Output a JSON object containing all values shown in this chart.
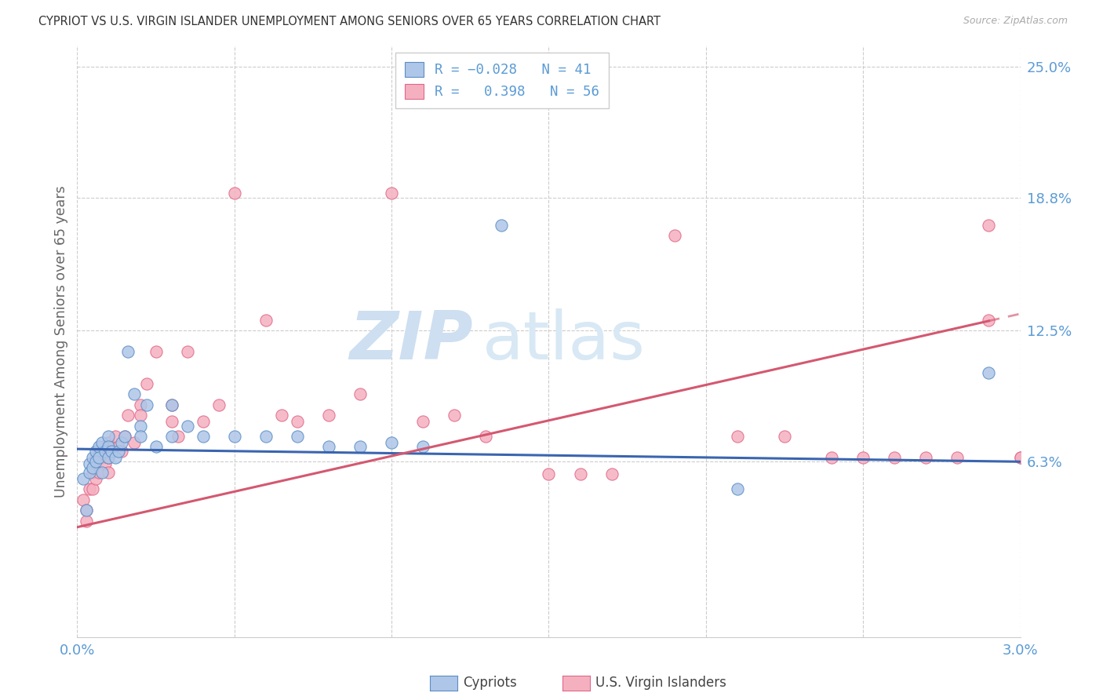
{
  "title": "CYPRIOT VS U.S. VIRGIN ISLANDER UNEMPLOYMENT AMONG SENIORS OVER 65 YEARS CORRELATION CHART",
  "source": "Source: ZipAtlas.com",
  "ylabel": "Unemployment Among Seniors over 65 years",
  "x_min": 0.0,
  "x_max": 0.03,
  "y_min": -0.02,
  "y_max": 0.26,
  "x_ticks": [
    0.0,
    0.005,
    0.01,
    0.015,
    0.02,
    0.025,
    0.03
  ],
  "x_tick_labels": [
    "0.0%",
    "",
    "",
    "",
    "",
    "",
    "3.0%"
  ],
  "y_tick_vals_right": [
    0.063,
    0.125,
    0.188,
    0.25
  ],
  "y_tick_labels_right": [
    "6.3%",
    "12.5%",
    "18.8%",
    "25.0%"
  ],
  "color_cypriot_fill": "#aec6e8",
  "color_cypriot_edge": "#5b8ec4",
  "color_virgin_fill": "#f5b0c0",
  "color_virgin_edge": "#e06888",
  "color_cypriot_line": "#3a65b0",
  "color_virgin_line": "#d45870",
  "color_title": "#333333",
  "color_ylabel": "#666666",
  "color_tick_right": "#5b9bd5",
  "color_tick_bottom": "#5b9bd5",
  "color_legend_text": "#5b9bd5",
  "watermark_color": "#cddff0",
  "background": "#ffffff",
  "cypriot_x": [
    0.0002,
    0.0003,
    0.0004,
    0.0004,
    0.0005,
    0.0005,
    0.0006,
    0.0006,
    0.0007,
    0.0007,
    0.0008,
    0.0008,
    0.0009,
    0.001,
    0.001,
    0.001,
    0.0011,
    0.0012,
    0.0013,
    0.0014,
    0.0015,
    0.0016,
    0.0018,
    0.002,
    0.002,
    0.0022,
    0.0025,
    0.003,
    0.003,
    0.0035,
    0.004,
    0.005,
    0.006,
    0.007,
    0.008,
    0.009,
    0.01,
    0.011,
    0.0135,
    0.021,
    0.029
  ],
  "cypriot_y": [
    0.055,
    0.04,
    0.062,
    0.058,
    0.065,
    0.06,
    0.068,
    0.063,
    0.07,
    0.065,
    0.072,
    0.058,
    0.068,
    0.075,
    0.07,
    0.065,
    0.068,
    0.065,
    0.068,
    0.072,
    0.075,
    0.115,
    0.095,
    0.08,
    0.075,
    0.09,
    0.07,
    0.09,
    0.075,
    0.08,
    0.075,
    0.075,
    0.075,
    0.075,
    0.07,
    0.07,
    0.072,
    0.07,
    0.175,
    0.05,
    0.105
  ],
  "virgin_x": [
    0.0002,
    0.0003,
    0.0003,
    0.0004,
    0.0005,
    0.0005,
    0.0006,
    0.0006,
    0.0007,
    0.0007,
    0.0008,
    0.0009,
    0.001,
    0.001,
    0.001,
    0.0012,
    0.0013,
    0.0014,
    0.0015,
    0.0016,
    0.0018,
    0.002,
    0.002,
    0.0022,
    0.0025,
    0.003,
    0.003,
    0.0032,
    0.0035,
    0.004,
    0.0045,
    0.005,
    0.006,
    0.0065,
    0.007,
    0.008,
    0.009,
    0.01,
    0.011,
    0.012,
    0.013,
    0.015,
    0.016,
    0.017,
    0.019,
    0.021,
    0.0225,
    0.024,
    0.025,
    0.026,
    0.027,
    0.028,
    0.029,
    0.029,
    0.03,
    0.03
  ],
  "virgin_y": [
    0.045,
    0.04,
    0.035,
    0.05,
    0.058,
    0.05,
    0.065,
    0.055,
    0.068,
    0.058,
    0.065,
    0.062,
    0.072,
    0.065,
    0.058,
    0.075,
    0.07,
    0.068,
    0.075,
    0.085,
    0.072,
    0.09,
    0.085,
    0.1,
    0.115,
    0.09,
    0.082,
    0.075,
    0.115,
    0.082,
    0.09,
    0.19,
    0.13,
    0.085,
    0.082,
    0.085,
    0.095,
    0.19,
    0.082,
    0.085,
    0.075,
    0.057,
    0.057,
    0.057,
    0.17,
    0.075,
    0.075,
    0.065,
    0.065,
    0.065,
    0.065,
    0.065,
    0.13,
    0.175,
    0.065,
    0.065
  ],
  "trend_cyp_x0": 0.0,
  "trend_cyp_y0": 0.069,
  "trend_cyp_x1": 0.03,
  "trend_cyp_y1": 0.063,
  "trend_vir_x0": 0.0,
  "trend_vir_y0": 0.032,
  "trend_vir_x1": 0.03,
  "trend_vir_y1": 0.133,
  "trend_vir_solid_end": 0.029
}
